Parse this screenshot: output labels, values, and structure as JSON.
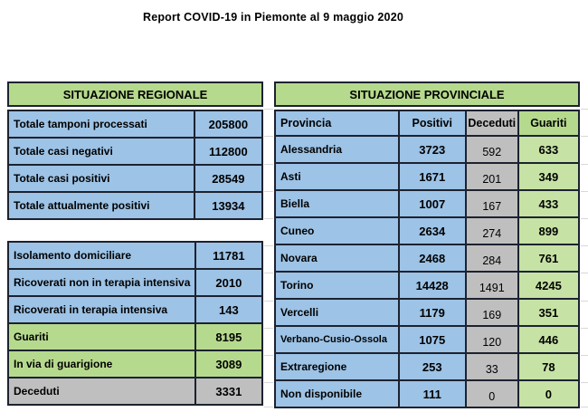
{
  "title": "Report COVID-19 in Piemonte al 9 maggio 2020",
  "colors": {
    "border": "#1d2230",
    "blue": "#9dc3e6",
    "green": "#b6da8d",
    "green-light": "#c6e2a5",
    "gray": "#bfbfbf",
    "grid": "#d8d8d8"
  },
  "regional": {
    "title": "SITUAZIONE REGIONALE",
    "rows": [
      {
        "label": "Totale tamponi processati",
        "value": "205800"
      },
      {
        "label": "Totale casi negativi",
        "value": "112800"
      },
      {
        "label": "Totale casi positivi",
        "value": "28549"
      },
      {
        "label": "Totale attualmente positivi",
        "value": "13934"
      }
    ]
  },
  "detail": {
    "rows": [
      {
        "label": "Isolamento domiciliare",
        "value": "11781"
      },
      {
        "label": "Ricoverati non in terapia intensiva",
        "value": "2010"
      },
      {
        "label": "Ricoverati in terapia intensiva",
        "value": "143"
      },
      {
        "label": "Guariti",
        "value": "8195"
      },
      {
        "label": "In via di guarigione",
        "value": "3089"
      },
      {
        "label": "Deceduti",
        "value": "3331"
      }
    ]
  },
  "provincial": {
    "title": "SITUAZIONE PROVINCIALE",
    "columns": [
      "Provincia",
      "Positivi",
      "Deceduti",
      "Guariti"
    ],
    "rows": [
      {
        "provincia": "Alessandria",
        "positivi": "3723",
        "deceduti": "592",
        "guariti": "633"
      },
      {
        "provincia": "Asti",
        "positivi": "1671",
        "deceduti": "201",
        "guariti": "349"
      },
      {
        "provincia": "Biella",
        "positivi": "1007",
        "deceduti": "167",
        "guariti": "433"
      },
      {
        "provincia": "Cuneo",
        "positivi": "2634",
        "deceduti": "274",
        "guariti": "899"
      },
      {
        "provincia": "Novara",
        "positivi": "2468",
        "deceduti": "284",
        "guariti": "761"
      },
      {
        "provincia": "Torino",
        "positivi": "14428",
        "deceduti": "1491",
        "guariti": "4245"
      },
      {
        "provincia": "Vercelli",
        "positivi": "1179",
        "deceduti": "169",
        "guariti": "351"
      },
      {
        "provincia": "Verbano-Cusio-Ossola",
        "positivi": "1075",
        "deceduti": "120",
        "guariti": "446"
      },
      {
        "provincia": "Extraregione",
        "positivi": "253",
        "deceduti": "33",
        "guariti": "78"
      },
      {
        "provincia": "Non disponibile",
        "positivi": "111",
        "deceduti": "0",
        "guariti": "0"
      }
    ]
  }
}
